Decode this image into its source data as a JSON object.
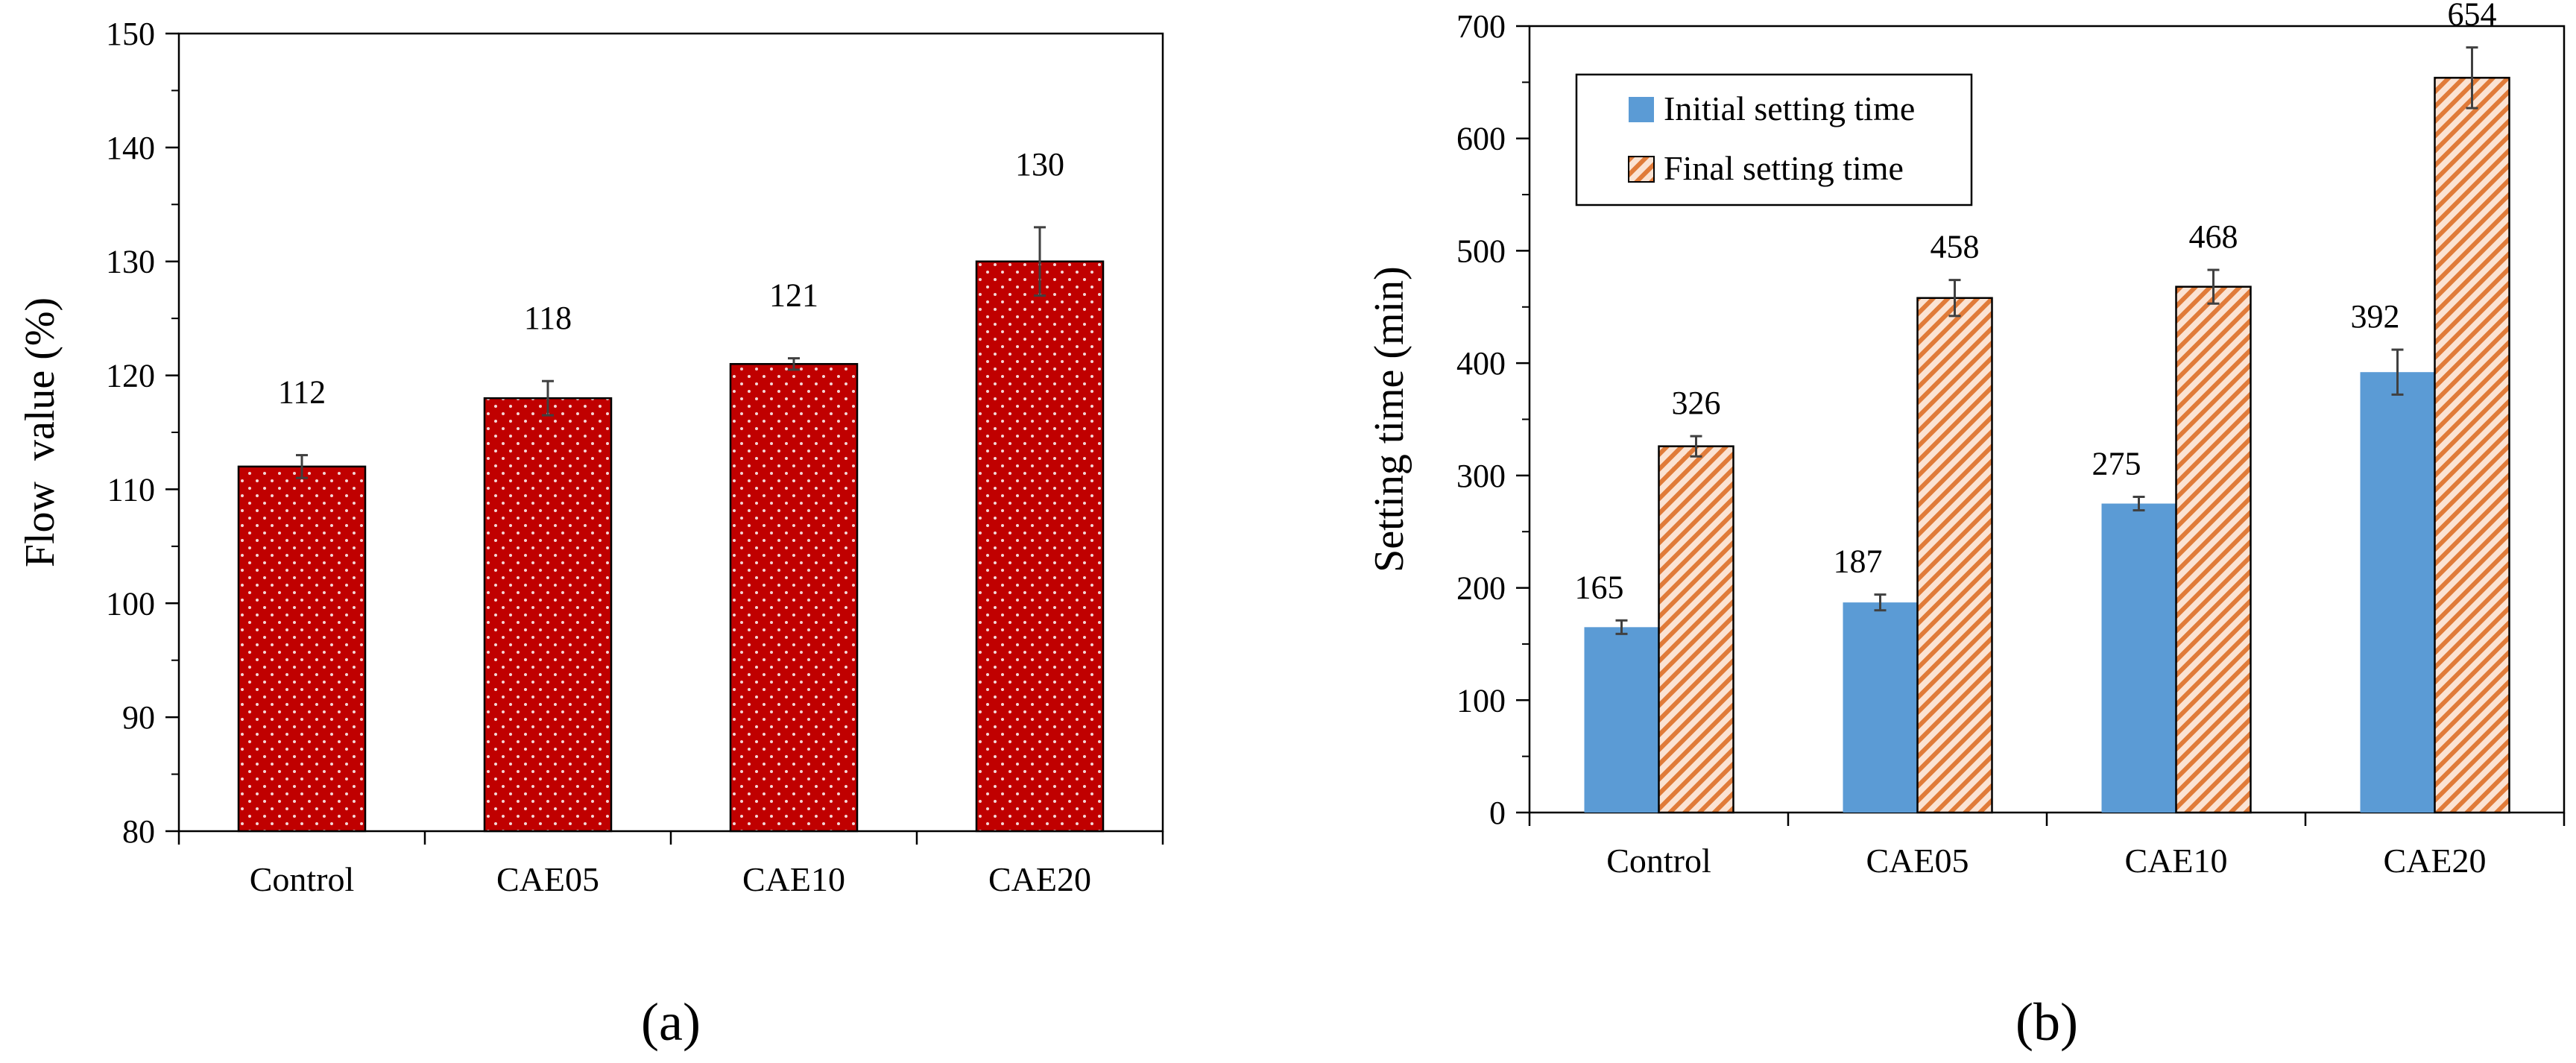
{
  "chart_data": [
    {
      "type": "bar",
      "panel_label": "(a)",
      "categories": [
        "Control",
        "CAE05",
        "CAE10",
        "CAE20"
      ],
      "values": [
        112,
        118,
        121,
        130
      ],
      "errors": [
        1,
        1.5,
        0.5,
        3
      ],
      "ylabel": "Flow  value (%)",
      "xlabel": "",
      "ylim": [
        80,
        150
      ],
      "yticks": [
        80,
        90,
        100,
        110,
        120,
        130,
        140,
        150
      ],
      "bar_color": "#c00000",
      "grid": false
    },
    {
      "type": "bar",
      "panel_label": "(b)",
      "categories": [
        "Control",
        "CAE05",
        "CAE10",
        "CAE20"
      ],
      "series": [
        {
          "name": "Initial setting time",
          "values": [
            165,
            187,
            275,
            392
          ],
          "errors": [
            6,
            7,
            6,
            20
          ],
          "color": "#5b9bd5"
        },
        {
          "name": "Final setting time",
          "values": [
            326,
            458,
            468,
            654
          ],
          "errors": [
            9,
            16,
            15,
            27
          ],
          "color": "#e07b39"
        }
      ],
      "ylabel": "Setting time (min)",
      "xlabel": "",
      "ylim": [
        0,
        700
      ],
      "yticks": [
        0,
        100,
        200,
        300,
        400,
        500,
        600,
        700
      ],
      "legend": "top-left",
      "grid": false
    }
  ]
}
